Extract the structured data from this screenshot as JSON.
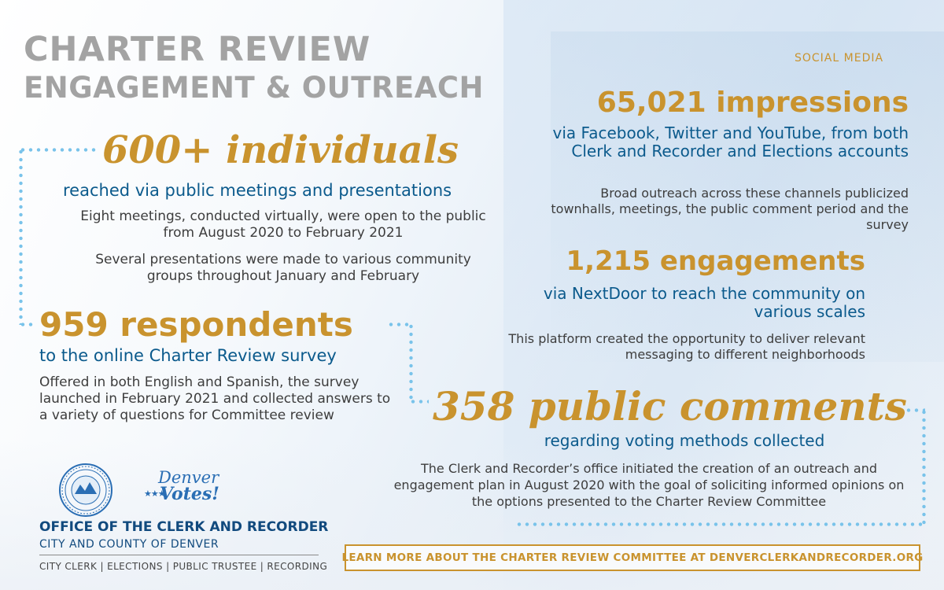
{
  "header": {
    "title_line1": "CHARTER REVIEW",
    "title_line2": "ENGAGEMENT & OUTREACH"
  },
  "individuals": {
    "headline": "600+ individuals",
    "subhead": "reached via public meetings and presentations",
    "body1": "Eight meetings, conducted virtually, were open to the public from August 2020 to February 2021",
    "body2": "Several presentations were made to various community groups throughout January and February"
  },
  "respondents": {
    "headline": "959 respondents",
    "subhead": "to the online Charter Review survey",
    "body": "Offered in both English and Spanish, the survey launched in February 2021 and collected answers to a variety of questions for Committee review"
  },
  "social_media": {
    "label": "SOCIAL MEDIA",
    "impressions_headline": "65,021 impressions",
    "impressions_subhead": "via Facebook, Twitter and YouTube, from both Clerk and Recorder and Elections accounts",
    "impressions_body": "Broad outreach across these channels publicized townhalls, meetings, the public comment period and the survey",
    "engagements_headline": "1,215 engagements",
    "engagements_subhead": "via NextDoor to reach the community on various scales",
    "engagements_body": "This platform created the opportunity to deliver relevant messaging to different neighborhoods"
  },
  "comments": {
    "headline": "358 public comments",
    "subhead": "regarding voting methods collected",
    "body": "The Clerk and Recorder’s office initiated the creation of an outreach and engagement plan in August 2020 with the goal of soliciting informed opinions on the options presented to the Charter Review Committee"
  },
  "footer": {
    "logo_text_1": "Denver",
    "logo_text_2": "Votes!",
    "office": "OFFICE OF THE CLERK AND RECORDER",
    "city": "CITY AND COUNTY OF DENVER",
    "departments": "CITY CLERK | ELECTIONS | PUBLIC TRUSTEE | RECORDING",
    "learn_more": "LEARN MORE ABOUT THE CHARTER REVIEW COMMITTEE AT DENVERCLERKANDRECORDER.ORG"
  },
  "colors": {
    "gold": "#c9932e",
    "blue": "#0b5a8c",
    "title_gray": "#a3a3a3",
    "dot_blue": "#79c3ea"
  },
  "icons": [
    "city-county-seal-icon",
    "denver-votes-logo"
  ]
}
